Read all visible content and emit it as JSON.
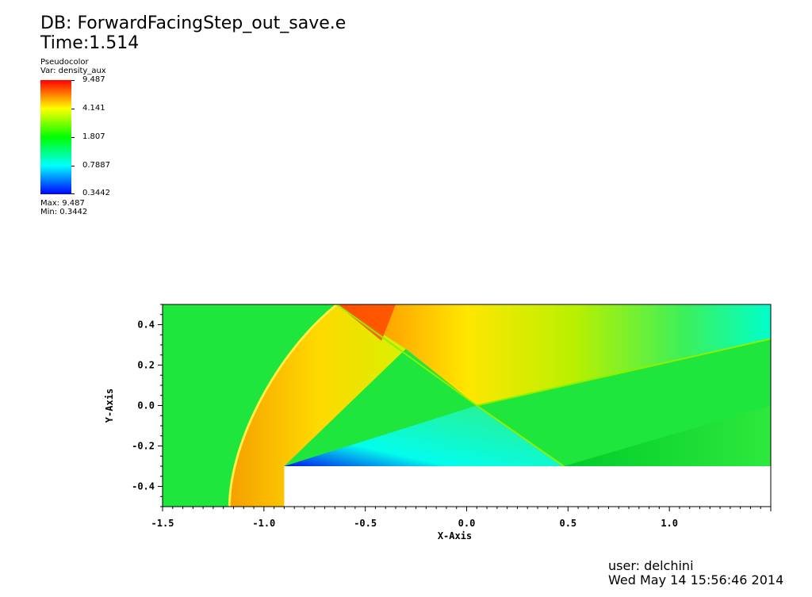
{
  "header": {
    "db_title": "DB: ForwardFacingStep_out_save.e",
    "time_label": "Time:1.514"
  },
  "legend": {
    "plot_type": "Pseudocolor",
    "variable": "Var: density_aux",
    "tick_labels": [
      "9.487",
      "4.141",
      "1.807",
      "0.7887",
      "0.3442"
    ],
    "max_label": "Max:  9.487",
    "min_label": "Min:  0.3442",
    "colormap": [
      "#0000ff",
      "#00ffff",
      "#00ff00",
      "#ffff00",
      "#ff0000"
    ]
  },
  "footer": {
    "user": "user: delchini",
    "date": "Wed May 14 15:56:46 2014"
  },
  "chart_data": {
    "type": "heatmap",
    "title": "",
    "xlabel": "X-Axis",
    "ylabel": "Y-Axis",
    "xlim": [
      -1.5,
      1.5
    ],
    "ylim": [
      -0.5,
      0.5
    ],
    "x_ticks": [
      -1.5,
      -1.0,
      -0.5,
      0.0,
      0.5,
      1.0
    ],
    "x_tick_labels": [
      "-1.5",
      "-1.0",
      "-0.5",
      "0.0",
      "0.5",
      "1.0"
    ],
    "y_ticks": [
      0.4,
      0.2,
      0.0,
      -0.2,
      -0.4
    ],
    "y_tick_labels": [
      "0.4",
      "0.2",
      "0.0",
      "-0.2",
      "-0.4"
    ],
    "variable": "density_aux",
    "value_range": [
      0.3442,
      9.487
    ],
    "step": {
      "x_start": -0.9,
      "x_end": 1.5,
      "y_top": -0.3,
      "y_bottom": -0.5
    },
    "grid": false
  }
}
